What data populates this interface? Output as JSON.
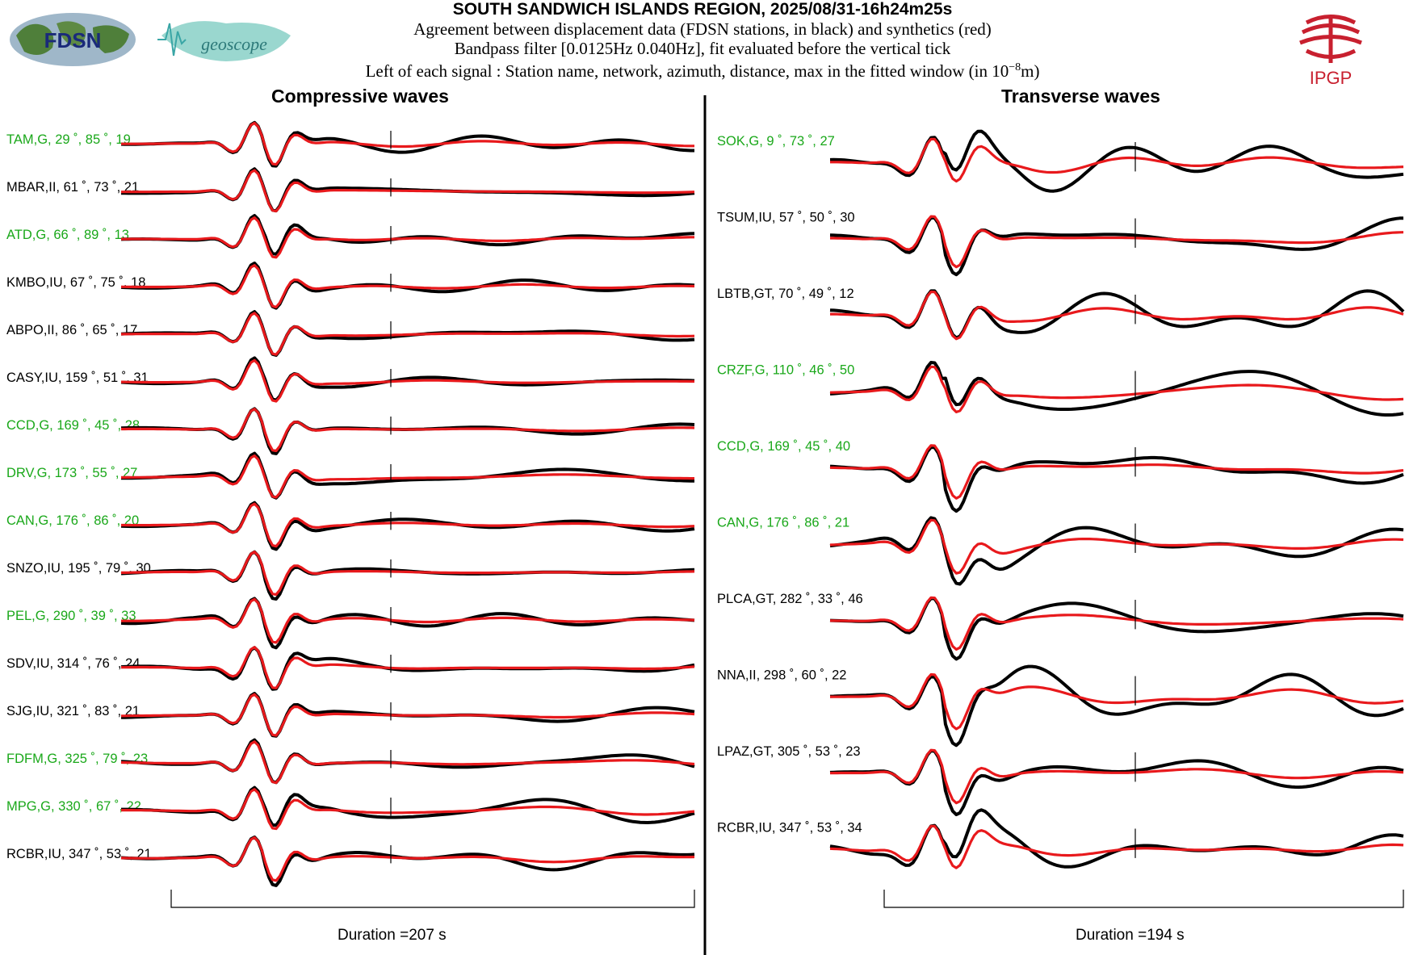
{
  "header": {
    "title": "SOUTH SANDWICH ISLANDS REGION, 2025/08/31-16h24m25s",
    "line1": "Agreement between displacement data (FDSN stations, in black) and synthetics (red)",
    "line2": "Bandpass filter [0.0125Hz 0.040Hz], fit evaluated before the vertical tick",
    "line3_prefix": "Left of each signal : Station name, network, azimuth, distance, max in the fitted window (in 10",
    "line3_exp": "−8",
    "line3_suffix": "m)"
  },
  "logos": {
    "fdsn": "FDSN",
    "geoscope": "geoscope",
    "ipgp": "IPGP"
  },
  "colors": {
    "data": "#000000",
    "synthetic": "#e8191c",
    "green_label": "#1aa81a",
    "logo_red": "#c8202f",
    "logo_teal": "#3aa6a6"
  },
  "chart_data": [
    {
      "type": "line",
      "title": "Compressive waves",
      "duration_label": "Duration =207 s",
      "duration_s": 207,
      "series_legend": [
        "data (black)",
        "synthetics (red)"
      ],
      "stations": [
        {
          "label": "TAM,G, 29 ˚, 85 ˚, 19",
          "color": "green"
        },
        {
          "label": "MBAR,II, 61 ˚, 73 ˚, 21",
          "color": "black"
        },
        {
          "label": "ATD,G, 66 ˚, 89 ˚, 13",
          "color": "green"
        },
        {
          "label": "KMBO,IU, 67 ˚, 75 ˚, 18",
          "color": "black"
        },
        {
          "label": "ABPO,II, 86 ˚, 65 ˚, 17",
          "color": "black"
        },
        {
          "label": "CASY,IU, 159 ˚, 51 ˚, 31",
          "color": "black"
        },
        {
          "label": "CCD,G, 169 ˚, 45 ˚, 28",
          "color": "green"
        },
        {
          "label": "DRV,G, 173 ˚, 55 ˚, 27",
          "color": "green"
        },
        {
          "label": "CAN,G, 176 ˚, 86 ˚, 20",
          "color": "green"
        },
        {
          "label": "SNZO,IU, 195 ˚, 79 ˚, 30",
          "color": "black"
        },
        {
          "label": "PEL,G, 290 ˚, 39 ˚, 33",
          "color": "green"
        },
        {
          "label": "SDV,IU, 314 ˚, 76 ˚, 24",
          "color": "black"
        },
        {
          "label": "SJG,IU, 321 ˚, 83 ˚, 21",
          "color": "black"
        },
        {
          "label": "FDFM,G, 325 ˚, 79 ˚, 23",
          "color": "green"
        },
        {
          "label": "MPG,G, 330 ˚, 67 ˚, 22",
          "color": "green"
        },
        {
          "label": "RCBR,IU, 347 ˚, 53 ˚, 21",
          "color": "black"
        }
      ]
    },
    {
      "type": "line",
      "title": "Transverse waves",
      "duration_label": "Duration =194 s",
      "duration_s": 194,
      "series_legend": [
        "data (black)",
        "synthetics (red)"
      ],
      "stations": [
        {
          "label": "SOK,G, 9 ˚, 73 ˚, 27",
          "color": "green"
        },
        {
          "label": "TSUM,IU, 57 ˚, 50 ˚, 30",
          "color": "black"
        },
        {
          "label": "LBTB,GT, 70 ˚, 49 ˚, 12",
          "color": "black"
        },
        {
          "label": "CRZF,G, 110 ˚, 46 ˚, 50",
          "color": "green"
        },
        {
          "label": "CCD,G, 169 ˚, 45 ˚, 40",
          "color": "green"
        },
        {
          "label": "CAN,G, 176 ˚, 86 ˚, 21",
          "color": "green"
        },
        {
          "label": "PLCA,GT, 282 ˚, 33 ˚, 46",
          "color": "black"
        },
        {
          "label": "NNA,II, 298 ˚, 60 ˚, 22",
          "color": "black"
        },
        {
          "label": "LPAZ,GT, 305 ˚, 53 ˚, 23",
          "color": "black"
        },
        {
          "label": "RCBR,IU, 347 ˚, 53 ˚, 34",
          "color": "black"
        }
      ]
    }
  ]
}
